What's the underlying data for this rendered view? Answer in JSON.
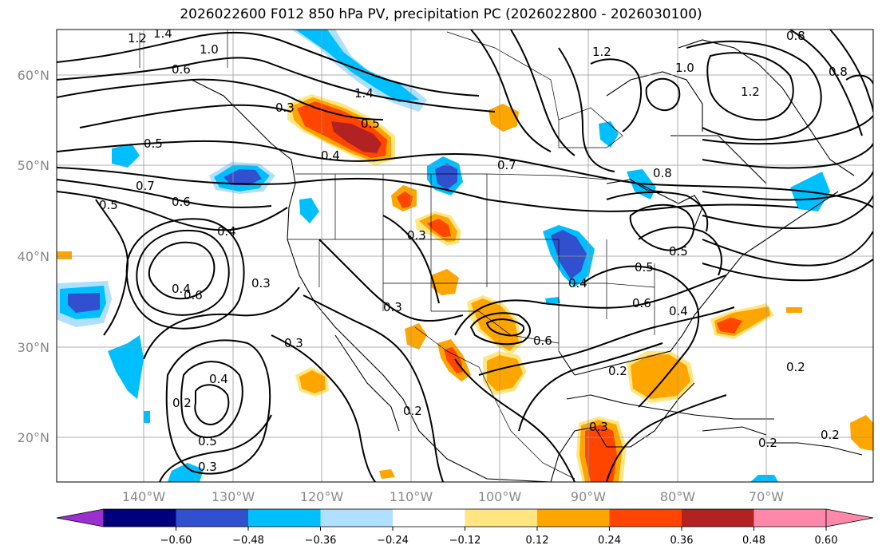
{
  "title": "2026022600 F012 850 hPa PV, precipitation PC (2026022800 - 2026030100)",
  "lat_labels": [
    "60°N",
    "50°N",
    "40°N",
    "30°N",
    "20°N"
  ],
  "lon_labels": [
    "140°W",
    "130°W",
    "120°W",
    "110°W",
    "100°W",
    "90°W",
    "80°W",
    "70°W"
  ],
  "colorbar": {
    "ticks": [
      "−0.60",
      "−0.48",
      "−0.36",
      "−0.24",
      "−0.12",
      "0.12",
      "0.24",
      "0.36",
      "0.48",
      "0.60"
    ],
    "colors": [
      "#9b30d0",
      "#00007f",
      "#3050d0",
      "#00bfff",
      "#b0e0ff",
      "#ffffff",
      "#ffe680",
      "#ffa500",
      "#ff4500",
      "#b22222",
      "#ff88aa",
      "#ff88aa"
    ]
  },
  "contour_labels": [
    "1.2",
    "1.4",
    "1.0",
    "0.6",
    "0.3",
    "0.5",
    "0.4",
    "1.4",
    "0.5",
    "0.7",
    "0.6",
    "0.5",
    "0.4",
    "0.6",
    "0.3",
    "0.3",
    "0.4",
    "0.2",
    "0.4",
    "0.5",
    "0.2",
    "0.3",
    "0.3",
    "0.3",
    "0.7",
    "0.8",
    "0.5",
    "0.5",
    "0.6",
    "0.4",
    "0.4",
    "0.6",
    "0.2",
    "0.2",
    "0.3",
    "0.2",
    "0.2",
    "1.2",
    "0.8",
    "1.2",
    "1.0",
    "0.8"
  ]
}
